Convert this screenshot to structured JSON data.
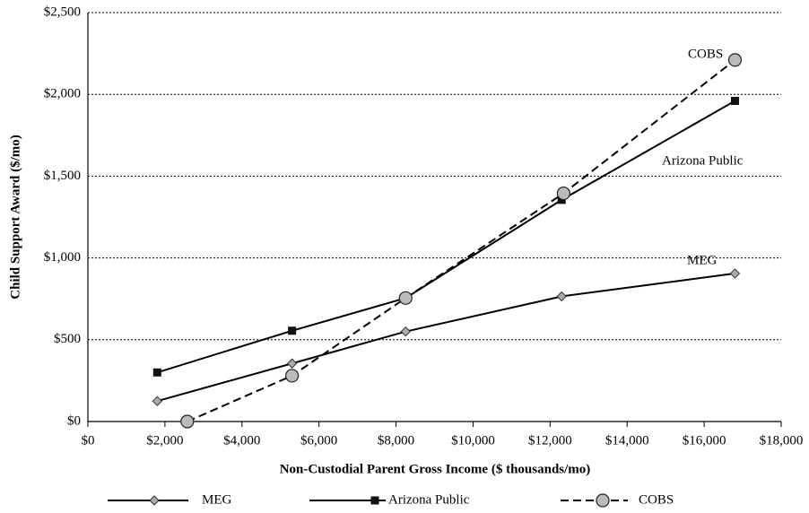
{
  "chart_data": {
    "type": "line",
    "xlabel": "Non-Custodial Parent Gross Income ($ thousands/mo)",
    "ylabel": "Child Support Award ($/mo)",
    "xlim": [
      0,
      18000
    ],
    "xticks": [
      {
        "value": 0,
        "label": "$0"
      },
      {
        "value": 2000,
        "label": "$2,000"
      },
      {
        "value": 4000,
        "label": "$4,000"
      },
      {
        "value": 6000,
        "label": "$6,000"
      },
      {
        "value": 8000,
        "label": "$8,000"
      },
      {
        "value": 10000,
        "label": "$10,000"
      },
      {
        "value": 12000,
        "label": "$12,000"
      },
      {
        "value": 14000,
        "label": "$14,000"
      },
      {
        "value": 16000,
        "label": "$16,000"
      },
      {
        "value": 18000,
        "label": "$18,000"
      }
    ],
    "ylim": [
      0,
      2500
    ],
    "yticks": [
      {
        "value": 0,
        "label": "$0"
      },
      {
        "value": 500,
        "label": "$500"
      },
      {
        "value": 1000,
        "label": "$1,000"
      },
      {
        "value": 1500,
        "label": "$1,500"
      },
      {
        "value": 2000,
        "label": "$2,000"
      },
      {
        "value": 2500,
        "label": "$2,500"
      }
    ],
    "grid": true,
    "series": [
      {
        "name": "MEG",
        "color": "#000000",
        "marker": "diamond",
        "dashed": false,
        "x": [
          1800,
          5300,
          8250,
          12300,
          16800
        ],
        "values": [
          125,
          355,
          550,
          765,
          905
        ]
      },
      {
        "name": "Arizona Public",
        "color": "#000000",
        "marker": "square",
        "dashed": false,
        "x": [
          1800,
          5300,
          8250,
          12300,
          16800
        ],
        "values": [
          300,
          555,
          755,
          1355,
          1960
        ]
      },
      {
        "name": "COBS",
        "color": "#000000",
        "marker": "circle",
        "dashed": true,
        "x": [
          2580,
          5300,
          8250,
          12350,
          16800
        ],
        "values": [
          0,
          280,
          755,
          1395,
          2210
        ]
      }
    ],
    "annotations": [
      "COBS",
      "Arizona Public",
      "MEG"
    ]
  }
}
